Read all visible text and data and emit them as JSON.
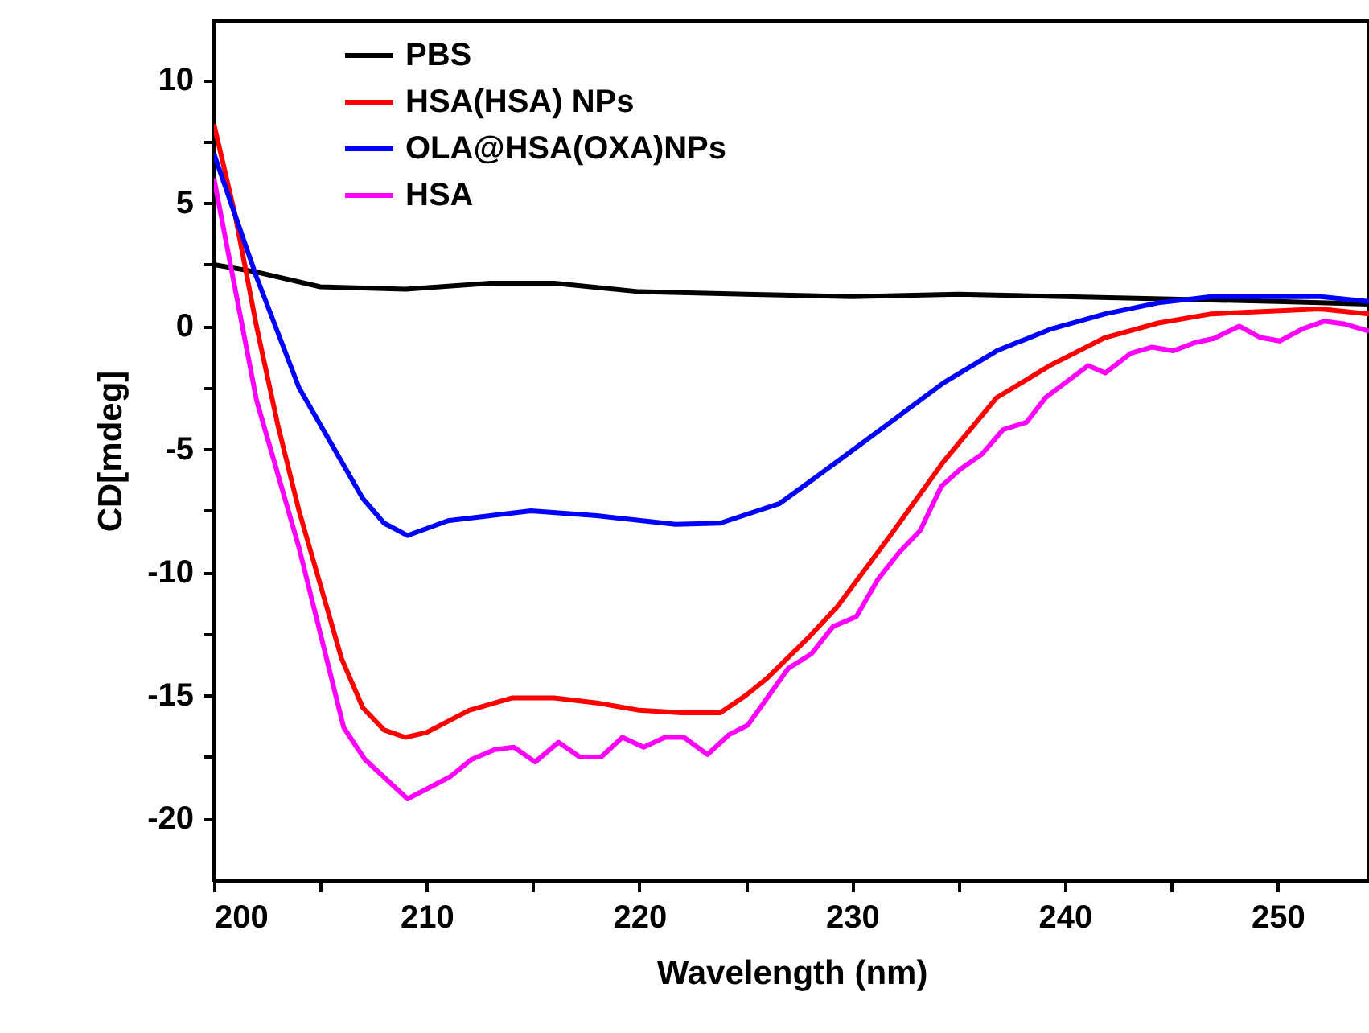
{
  "chart_data": {
    "type": "line",
    "xlabel": "Wavelength (nm)",
    "ylabel": "CD[mdeg]",
    "xlim": [
      200,
      254.3
    ],
    "ylim": [
      -22.5,
      12.4
    ],
    "xticks": [
      200,
      {
        "value": 205,
        "label": null
      },
      210,
      {
        "value": 215,
        "label": null
      },
      220,
      {
        "value": 225,
        "label": null
      },
      230,
      {
        "value": 235,
        "label": null
      },
      240,
      {
        "value": 245,
        "label": null
      },
      250
    ],
    "yticks": [
      -20,
      {
        "value": -17.5,
        "label": null
      },
      -15,
      {
        "value": -12.5,
        "label": null
      },
      -10,
      {
        "value": -7.5,
        "label": null
      },
      -5,
      {
        "value": -2.5,
        "label": null
      },
      0,
      {
        "value": 2.5,
        "label": null
      },
      5,
      {
        "value": 7.5,
        "label": null
      },
      10
    ],
    "grid": false,
    "legend": "top left",
    "marker": "none",
    "line_style": "solid",
    "series": [
      {
        "name": "PBS",
        "color": "#000000",
        "x": [
          200,
          202,
          205,
          209,
          213,
          216,
          220,
          225,
          230,
          235,
          240,
          245,
          250,
          254.3
        ],
        "values": [
          2.5,
          2.2,
          1.6,
          1.5,
          1.75,
          1.75,
          1.4,
          1.3,
          1.2,
          1.3,
          1.2,
          1.1,
          1.0,
          0.9
        ]
      },
      {
        "name": "HSA(HSA) NPs",
        "color": "#ff0000",
        "x": [
          200,
          201,
          202,
          203,
          204,
          205,
          206,
          207,
          208,
          209,
          210,
          212,
          214,
          216,
          218,
          220,
          222,
          223.8,
          225,
          226,
          228,
          229.3,
          231.8,
          234.3,
          236.8,
          239.3,
          241.9,
          244.4,
          246.9,
          252,
          254.3
        ],
        "values": [
          8.2,
          4.5,
          0,
          -4,
          -7.5,
          -10.5,
          -13.5,
          -15.5,
          -16.4,
          -16.7,
          -16.5,
          -15.6,
          -15.1,
          -15.1,
          -15.3,
          -15.6,
          -15.7,
          -15.7,
          -15.0,
          -14.3,
          -12.6,
          -11.4,
          -8.5,
          -5.5,
          -2.9,
          -1.6,
          -0.46,
          0.13,
          0.5,
          0.7,
          0.5
        ]
      },
      {
        "name": "OLA@HSA(OXA)NPs",
        "color": "#0000ff",
        "x": [
          200,
          202,
          204,
          206,
          207,
          208,
          209.1,
          211,
          214.9,
          218,
          221.7,
          223.8,
          226.6,
          229.3,
          231.8,
          234.3,
          236.8,
          239.3,
          241.9,
          244.4,
          246.9,
          252,
          254.3
        ],
        "values": [
          7,
          2,
          -2.5,
          -5.5,
          -7,
          -8,
          -8.5,
          -7.9,
          -7.5,
          -7.7,
          -8.05,
          -8.0,
          -7.2,
          -5.5,
          -3.9,
          -2.3,
          -1.0,
          -0.13,
          0.5,
          0.95,
          1.2,
          1.2,
          1.0
        ]
      },
      {
        "name": "HSA",
        "color": "#ff00ff",
        "x": [
          200,
          202,
          204,
          206.1,
          207.1,
          209.1,
          211.1,
          212.1,
          213.2,
          214.1,
          215.1,
          216.2,
          217.2,
          218.2,
          219.2,
          220.2,
          221.2,
          222.1,
          223.2,
          224.2,
          225.1,
          227,
          228.1,
          229.1,
          230.2,
          231.2,
          232.2,
          233.2,
          234.2,
          235.1,
          236.1,
          237.1,
          238.2,
          239.1,
          241.1,
          241.9,
          243.1,
          244.1,
          245.1,
          246.1,
          247,
          248.2,
          249.2,
          250.1,
          251.2,
          252.2,
          253.1,
          254.3
        ],
        "values": [
          6,
          -3,
          -9,
          -16.3,
          -17.6,
          -19.2,
          -18.3,
          -17.6,
          -17.2,
          -17.1,
          -17.7,
          -16.9,
          -17.5,
          -17.5,
          -16.7,
          -17.1,
          -16.7,
          -16.7,
          -17.4,
          -16.6,
          -16.2,
          -13.9,
          -13.3,
          -12.2,
          -11.8,
          -10.3,
          -9.2,
          -8.3,
          -6.5,
          -5.8,
          -5.2,
          -4.2,
          -3.9,
          -2.9,
          -1.6,
          -1.9,
          -1.1,
          -0.85,
          -1.0,
          -0.67,
          -0.5,
          0,
          -0.46,
          -0.6,
          -0.1,
          0.2,
          0.1,
          -0.2
        ]
      }
    ]
  }
}
